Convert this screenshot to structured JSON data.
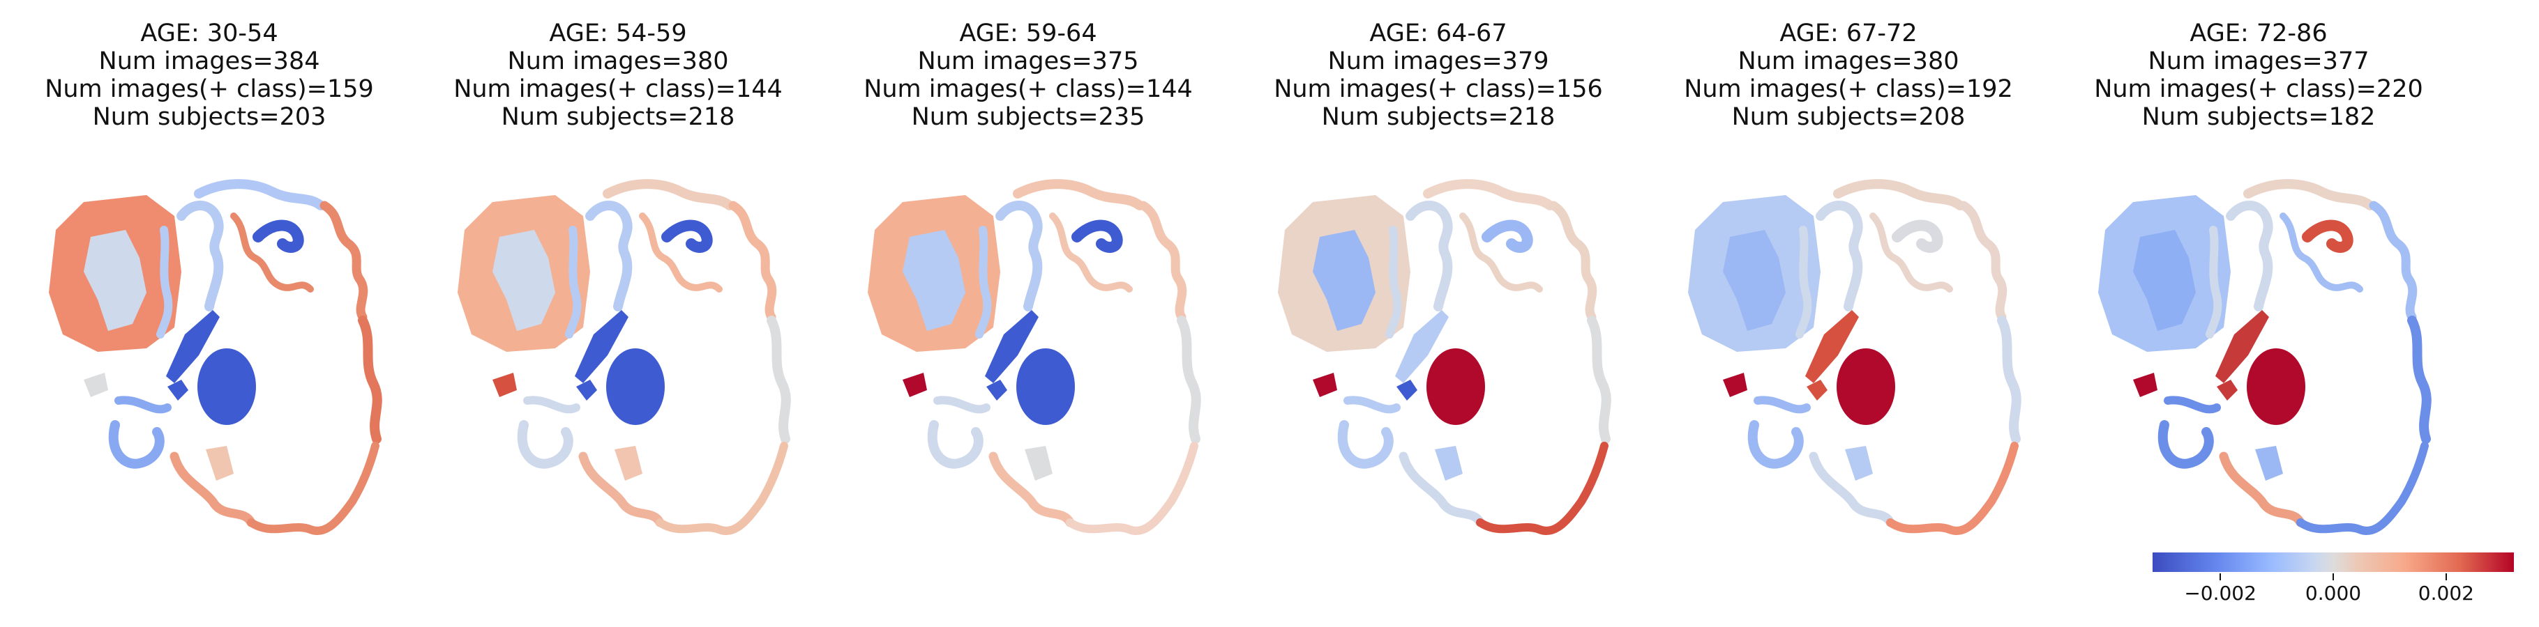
{
  "panels": [
    {
      "age": "AGE: 30-54",
      "num_images": "Num images=384",
      "num_pos": "Num images(+ class)=159",
      "num_subjects": "Num subjects=203",
      "colors": {
        "cortex_left": "#ef8c6f",
        "insula": "#cfd9ec",
        "frontal_ribbon": "#b6cbf3",
        "top_ribbon": "#b1c8f6",
        "top_dark": "#3e5bd1",
        "right_ribbon": "#e9896b",
        "right_lower": "#e3775b",
        "thalamus": "#3e5bd1",
        "putamen": "#3e5bd1",
        "caudate": "#3e5bd1",
        "small_left": "#dcdddf",
        "temporal": "#88a9f2",
        "lower_ribbon": "#ee9f83",
        "bottom_ribbon": "#e9896b",
        "brainstem": "#f1c6b0"
      }
    },
    {
      "age": "AGE: 54-59",
      "num_images": "Num images=380",
      "num_pos": "Num images(+ class)=144",
      "num_subjects": "Num subjects=218",
      "colors": {
        "cortex_left": "#f3b093",
        "insula": "#cfd9ec",
        "frontal_ribbon": "#b6cbf3",
        "top_ribbon": "#efcdbd",
        "top_dark": "#3e5bd1",
        "right_ribbon": "#f2b79c",
        "right_lower": "#dcdddf",
        "thalamus": "#3e5bd1",
        "putamen": "#3e5bd1",
        "caudate": "#3e5bd1",
        "small_left": "#d6513f",
        "temporal": "#cfd9ec",
        "lower_ribbon": "#efb49b",
        "bottom_ribbon": "#f1c2aa",
        "brainstem": "#f2c5b1"
      }
    },
    {
      "age": "AGE: 59-64",
      "num_images": "Num images=375",
      "num_pos": "Num images(+ class)=144",
      "num_subjects": "Num subjects=235",
      "colors": {
        "cortex_left": "#f3b093",
        "insula": "#b6cbf3",
        "frontal_ribbon": "#b6cbf3",
        "top_ribbon": "#f2c5b1",
        "top_dark": "#3e5bd1",
        "right_ribbon": "#f2c5b1",
        "right_lower": "#dcdddf",
        "thalamus": "#3e5bd1",
        "putamen": "#3e5bd1",
        "caudate": "#3e5bd1",
        "small_left": "#b0092b",
        "temporal": "#cfd9ec",
        "lower_ribbon": "#f3bea7",
        "bottom_ribbon": "#f1d2c4",
        "brainstem": "#dcdddf"
      }
    },
    {
      "age": "AGE: 64-67",
      "num_images": "Num images=379",
      "num_pos": "Num images(+ class)=156",
      "num_subjects": "Num subjects=218",
      "colors": {
        "cortex_left": "#ead3c7",
        "insula": "#9bb8f5",
        "frontal_ribbon": "#cfd9ec",
        "top_ribbon": "#efd5c8",
        "top_dark": "#9bb8f5",
        "right_ribbon": "#ebd3c6",
        "right_lower": "#dcdddf",
        "thalamus": "#b0092b",
        "putamen": "#3e5bd1",
        "caudate": "#b6cbf3",
        "small_left": "#b0092b",
        "temporal": "#b6cbf3",
        "lower_ribbon": "#cfd9ec",
        "bottom_ribbon": "#d6513f",
        "brainstem": "#b6cbf3"
      }
    },
    {
      "age": "AGE: 67-72",
      "num_images": "Num images=380",
      "num_pos": "Num images(+ class)=192",
      "num_subjects": "Num subjects=208",
      "colors": {
        "cortex_left": "#b6cbf3",
        "insula": "#9bb8f5",
        "frontal_ribbon": "#cfd9ec",
        "top_ribbon": "#ead3c7",
        "top_dark": "#d9dbe0",
        "right_ribbon": "#e9d5cb",
        "right_lower": "#cfd9ec",
        "thalamus": "#b0092b",
        "putamen": "#d6513f",
        "caudate": "#d6513f",
        "small_left": "#b0092b",
        "temporal": "#9bb8f5",
        "lower_ribbon": "#cfd9ec",
        "bottom_ribbon": "#ee8e72",
        "brainstem": "#b6cbf3"
      }
    },
    {
      "age": "AGE: 72-86",
      "num_images": "Num images=377",
      "num_pos": "Num images(+ class)=220",
      "num_subjects": "Num subjects=182",
      "colors": {
        "cortex_left": "#a9c3f6",
        "insula": "#8eaff3",
        "frontal_ribbon": "#cfd9ec",
        "top_ribbon": "#ead3c7",
        "top_dark": "#d6513f",
        "right_ribbon": "#a3bdf5",
        "right_lower": "#6b8ee8",
        "thalamus": "#b0092b",
        "putamen": "#c73a3a",
        "caudate": "#c73a3a",
        "small_left": "#b0092b",
        "temporal": "#6b8ee8",
        "lower_ribbon": "#ee9f83",
        "bottom_ribbon": "#6b8ee8",
        "brainstem": "#9bb8f5"
      }
    }
  ],
  "colorbar": {
    "colormap": "coolwarm",
    "ticks": [
      {
        "value": -0.002,
        "label": "−0.002"
      },
      {
        "value": 0.0,
        "label": "0.000"
      },
      {
        "value": 0.002,
        "label": "0.002"
      }
    ],
    "range": [
      -0.0032,
      0.0032
    ]
  }
}
